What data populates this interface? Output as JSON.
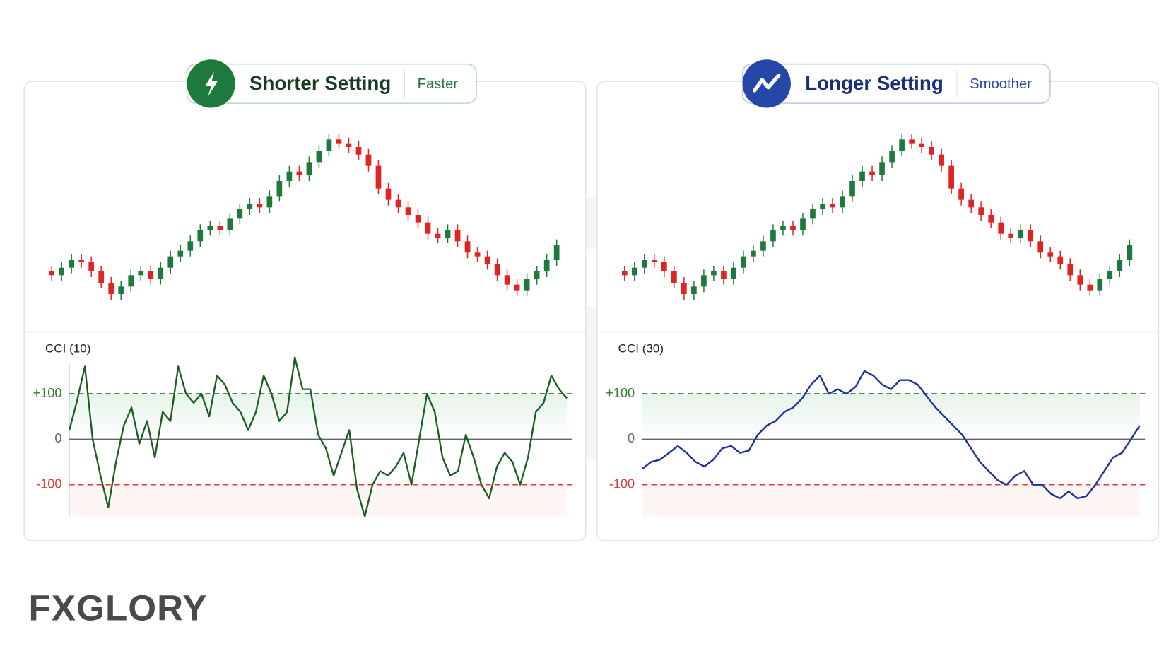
{
  "chart_data": [
    {
      "type": "candlestick",
      "title": "Shorter Setting",
      "subtitle": "Faster",
      "accent": "#1e7a3c",
      "up_color": "#1e7a3c",
      "down_color": "#e02424",
      "ylim": [
        0,
        100
      ],
      "open": [
        22,
        20,
        24,
        28,
        27,
        22,
        16,
        10,
        14,
        20,
        22,
        18,
        24,
        30,
        33,
        38,
        44,
        46,
        44,
        50,
        55,
        58,
        56,
        62,
        70,
        75,
        73,
        80,
        86,
        92,
        90,
        88,
        84,
        78,
        66,
        60,
        56,
        52,
        48,
        42,
        40,
        44,
        38,
        32,
        30,
        26,
        20,
        15,
        12,
        18,
        22,
        28
      ],
      "high": [
        25,
        27,
        31,
        31,
        30,
        25,
        19,
        17,
        23,
        25,
        25,
        27,
        33,
        36,
        41,
        47,
        49,
        49,
        53,
        58,
        61,
        61,
        65,
        73,
        78,
        78,
        83,
        89,
        95,
        95,
        93,
        91,
        87,
        81,
        69,
        63,
        59,
        55,
        51,
        45,
        47,
        47,
        41,
        35,
        33,
        29,
        23,
        18,
        21,
        25,
        31,
        39
      ],
      "low": [
        17,
        17,
        21,
        24,
        19,
        13,
        7,
        7,
        11,
        17,
        15,
        15,
        21,
        27,
        30,
        35,
        41,
        41,
        41,
        47,
        52,
        53,
        53,
        59,
        67,
        70,
        70,
        77,
        83,
        87,
        85,
        81,
        75,
        63,
        57,
        53,
        49,
        45,
        39,
        37,
        37,
        35,
        29,
        27,
        23,
        17,
        12,
        9,
        9,
        15,
        19,
        25
      ],
      "close": [
        20,
        24,
        28,
        27,
        22,
        16,
        10,
        14,
        20,
        22,
        18,
        24,
        30,
        33,
        38,
        44,
        46,
        44,
        50,
        55,
        58,
        56,
        62,
        70,
        75,
        73,
        80,
        86,
        92,
        90,
        88,
        84,
        78,
        66,
        60,
        56,
        52,
        48,
        42,
        40,
        44,
        38,
        32,
        30,
        26,
        20,
        15,
        12,
        18,
        22,
        28,
        36
      ],
      "indicator": {
        "type": "line",
        "label": "CCI (10)",
        "color": "#1b5e20",
        "ylim": [
          -170,
          165
        ],
        "yticks": [
          {
            "value": 100,
            "label": "+100"
          },
          0,
          -100
        ],
        "tick_colors": [
          "#2e7d32",
          "#5f6670",
          "#e53935"
        ],
        "tick_dash": [
          true,
          false,
          true
        ],
        "values": [
          20,
          85,
          160,
          0,
          -80,
          -150,
          -50,
          30,
          70,
          -10,
          40,
          -40,
          60,
          40,
          160,
          100,
          80,
          100,
          50,
          140,
          120,
          80,
          60,
          20,
          60,
          140,
          100,
          40,
          60,
          180,
          110,
          110,
          10,
          -20,
          -80,
          -30,
          20,
          -110,
          -170,
          -100,
          -70,
          -80,
          -60,
          -30,
          -100,
          0,
          100,
          60,
          -40,
          -80,
          -70,
          10,
          -40,
          -100,
          -130,
          -60,
          -30,
          -50,
          -100,
          -40,
          60,
          80,
          140,
          110,
          90
        ]
      }
    },
    {
      "type": "candlestick",
      "title": "Longer Setting",
      "subtitle": "Smoother",
      "accent": "#2747a8",
      "up_color": "#1e7a3c",
      "down_color": "#e02424",
      "ylim": [
        0,
        100
      ],
      "open": [
        22,
        20,
        24,
        28,
        27,
        22,
        16,
        10,
        14,
        20,
        22,
        18,
        24,
        30,
        33,
        38,
        44,
        46,
        44,
        50,
        55,
        58,
        56,
        62,
        70,
        75,
        73,
        80,
        86,
        92,
        90,
        88,
        84,
        78,
        66,
        60,
        56,
        52,
        48,
        42,
        40,
        44,
        38,
        32,
        30,
        26,
        20,
        15,
        12,
        18,
        22,
        28
      ],
      "high": [
        25,
        27,
        31,
        31,
        30,
        25,
        19,
        17,
        23,
        25,
        25,
        27,
        33,
        36,
        41,
        47,
        49,
        49,
        53,
        58,
        61,
        61,
        65,
        73,
        78,
        78,
        83,
        89,
        95,
        95,
        93,
        91,
        87,
        81,
        69,
        63,
        59,
        55,
        51,
        45,
        47,
        47,
        41,
        35,
        33,
        29,
        23,
        18,
        21,
        25,
        31,
        39
      ],
      "low": [
        17,
        17,
        21,
        24,
        19,
        13,
        7,
        7,
        11,
        17,
        15,
        15,
        21,
        27,
        30,
        35,
        41,
        41,
        41,
        47,
        52,
        53,
        53,
        59,
        67,
        70,
        70,
        77,
        83,
        87,
        85,
        81,
        75,
        63,
        57,
        53,
        49,
        45,
        39,
        37,
        37,
        35,
        29,
        27,
        23,
        17,
        12,
        9,
        9,
        15,
        19,
        25
      ],
      "close": [
        20,
        24,
        28,
        27,
        22,
        16,
        10,
        14,
        20,
        22,
        18,
        24,
        30,
        33,
        38,
        44,
        46,
        44,
        50,
        55,
        58,
        56,
        62,
        70,
        75,
        73,
        80,
        86,
        92,
        90,
        88,
        84,
        78,
        66,
        60,
        56,
        52,
        48,
        42,
        40,
        44,
        38,
        32,
        30,
        26,
        20,
        15,
        12,
        18,
        22,
        28,
        36
      ],
      "indicator": {
        "type": "line",
        "label": "CCI (30)",
        "color": "#1a2f9e",
        "ylim": [
          -170,
          165
        ],
        "yticks": [
          {
            "value": 100,
            "label": "+100"
          },
          0,
          -100
        ],
        "tick_colors": [
          "#2e7d32",
          "#5f6670",
          "#e53935"
        ],
        "tick_dash": [
          true,
          false,
          true
        ],
        "values": [
          -65,
          -50,
          -45,
          -30,
          -15,
          -30,
          -50,
          -60,
          -45,
          -20,
          -15,
          -30,
          -25,
          10,
          30,
          40,
          60,
          70,
          90,
          120,
          140,
          100,
          110,
          100,
          115,
          150,
          140,
          120,
          110,
          130,
          130,
          120,
          95,
          70,
          50,
          30,
          10,
          -20,
          -50,
          -70,
          -90,
          -100,
          -80,
          -70,
          -100,
          -100,
          -120,
          -130,
          -115,
          -130,
          -125,
          -100,
          -70,
          -40,
          -30,
          0,
          30
        ]
      }
    }
  ],
  "logo": "FXGLORY"
}
